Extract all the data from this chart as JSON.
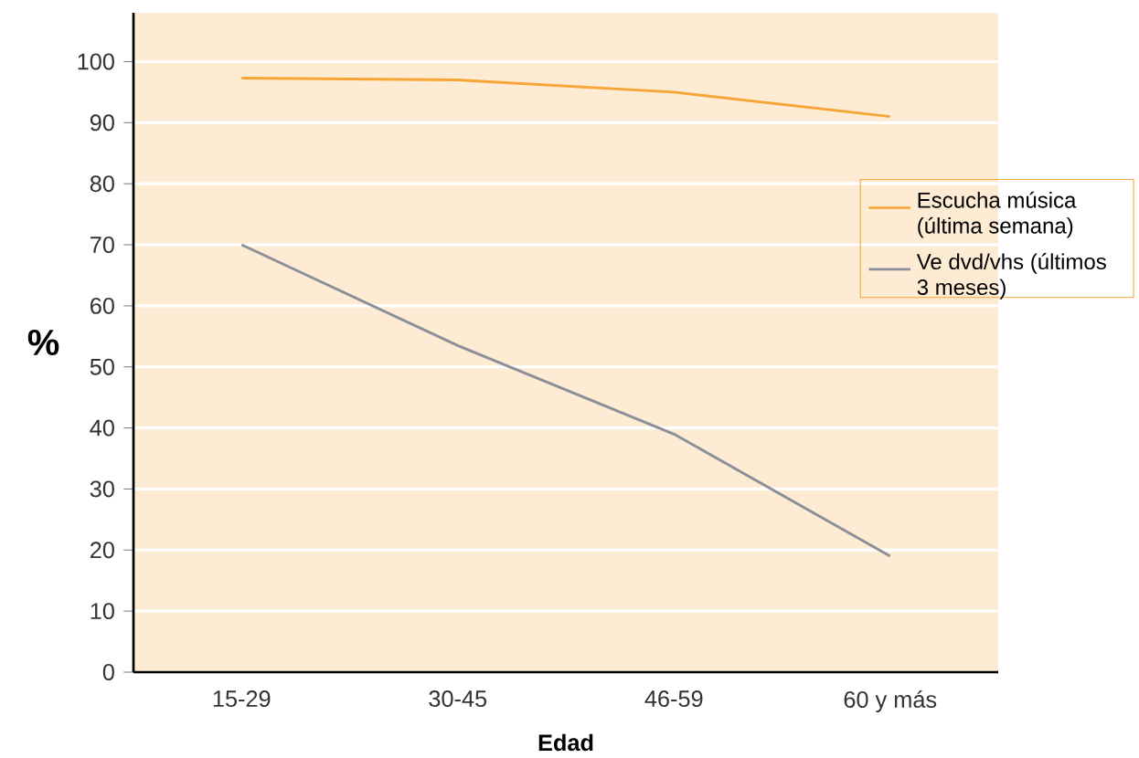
{
  "chart_data": {
    "type": "line",
    "xlabel": "Edad",
    "ylabel": "%",
    "categories": [
      "15-29",
      "30-45",
      "46-59",
      "60 y más"
    ],
    "series": [
      {
        "name": "Escucha música (última semana)",
        "color": "#f7a535",
        "values": [
          97.3,
          97,
          95,
          91
        ]
      },
      {
        "name": "Ve  dvd/vhs (últimos 3 meses)",
        "color": "#8c8f99",
        "values": [
          70,
          53.5,
          39,
          19
        ]
      }
    ],
    "ylim": [
      0,
      108
    ],
    "yticks": [
      0,
      10,
      20,
      30,
      40,
      50,
      60,
      70,
      80,
      90,
      100
    ],
    "grid": "y",
    "legend": "right",
    "marker": "none",
    "line_style": "solid"
  }
}
